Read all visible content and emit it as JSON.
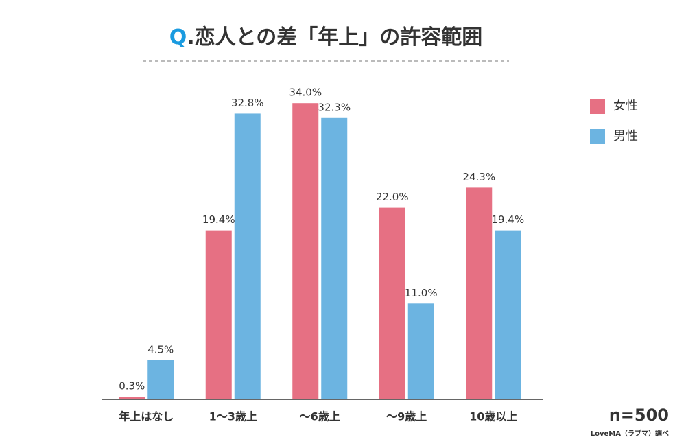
{
  "chart_data": {
    "type": "bar",
    "title": "Q.恋人との差「年上」の許容範囲",
    "categories": [
      "年上はなし",
      "1〜3歳上",
      "〜6歳上",
      "〜9歳上",
      "10歳以上"
    ],
    "series": [
      {
        "name": "女性",
        "color": "#e67083",
        "values": [
          0.3,
          19.4,
          34.0,
          22.0,
          24.3
        ],
        "value_labels": [
          "0.3%",
          "19.4%",
          "34.0%",
          "22.0%",
          "24.3%"
        ]
      },
      {
        "name": "男性",
        "color": "#6cb4e1",
        "values": [
          4.5,
          32.8,
          32.3,
          11.0,
          19.4
        ],
        "value_labels": [
          "4.5%",
          "32.8%",
          "32.3%",
          "11.0%",
          "19.4%"
        ]
      }
    ],
    "sample_size": "n=500",
    "source": "LoveMA（ラブマ）調べ",
    "title_accent_color": "#1a9be0"
  }
}
